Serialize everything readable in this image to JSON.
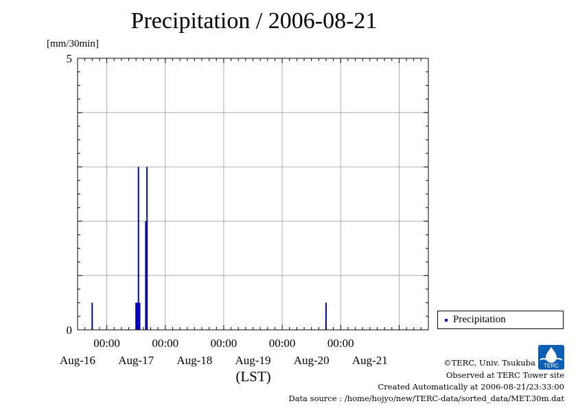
{
  "chart_data": {
    "type": "bar",
    "title": "Precipitation / 2006-08-21",
    "ylabel": "[mm/30min]",
    "xlabel": "(LST)",
    "ylim": [
      0,
      5
    ],
    "y_ticks": [
      "0",
      "5"
    ],
    "x_time_labels": [
      "00:00",
      "00:00",
      "00:00",
      "00:00",
      "00:00"
    ],
    "x_date_labels": [
      "Aug-16",
      "Aug-17",
      "Aug-18",
      "Aug-19",
      "Aug-20",
      "Aug-21"
    ],
    "x_range": [
      "2006-08-15 12:00",
      "2006-08-21 12:00"
    ],
    "grid": true,
    "legend_position": "right",
    "series": [
      {
        "name": "Precipitation",
        "color": "#0000c8",
        "points": [
          {
            "x": "2006-08-15 18:00",
            "y": 0.5
          },
          {
            "x": "2006-08-16 12:00",
            "y": 0.5
          },
          {
            "x": "2006-08-16 12:30",
            "y": 0.5
          },
          {
            "x": "2006-08-16 13:00",
            "y": 3.0
          },
          {
            "x": "2006-08-16 13:30",
            "y": 0.5
          },
          {
            "x": "2006-08-16 16:00",
            "y": 2.0
          },
          {
            "x": "2006-08-16 16:30",
            "y": 3.0
          },
          {
            "x": "2006-08-19 18:00",
            "y": 0.5
          }
        ]
      }
    ]
  },
  "credits": {
    "copyright": "©TERC, Univ. Tsukuba",
    "observed": "Observed at TERC Tower site",
    "created": "Created Automatically at 2006-08-21/23:33:00",
    "source": "Data source : /home/hojyo/new/TERC-data/sorted_data/MET.30m.dat"
  },
  "logo": {
    "text": "TERC",
    "color": "#0a5fb4"
  }
}
